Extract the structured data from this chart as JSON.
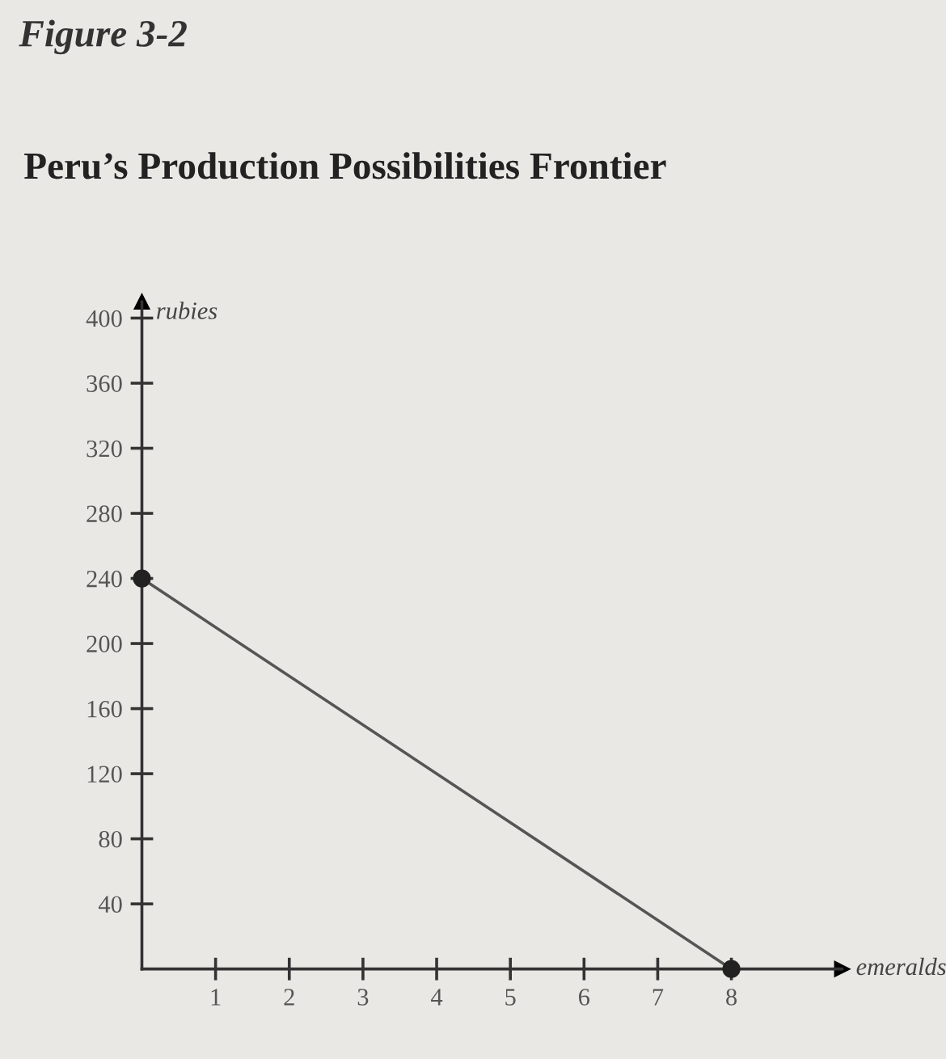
{
  "chart_data": {
    "type": "line",
    "title": "Peru’s Production Possibilities Frontier",
    "annotations": [
      "Figure 3-2"
    ],
    "xlabel": "emeralds",
    "ylabel": "rubies",
    "series": [
      {
        "color": "#555555",
        "x": [
          0,
          8
        ],
        "values": [
          240,
          0
        ]
      }
    ],
    "xlim": [
      0,
      9.5
    ],
    "xticks": [
      1,
      2,
      3,
      4,
      5,
      6,
      7,
      8
    ],
    "ylim": [
      0,
      410
    ],
    "yticks": [
      40,
      80,
      120,
      160,
      200,
      240,
      280,
      320,
      360,
      400
    ],
    "grid": false,
    "legend": false,
    "marker": "circle"
  }
}
